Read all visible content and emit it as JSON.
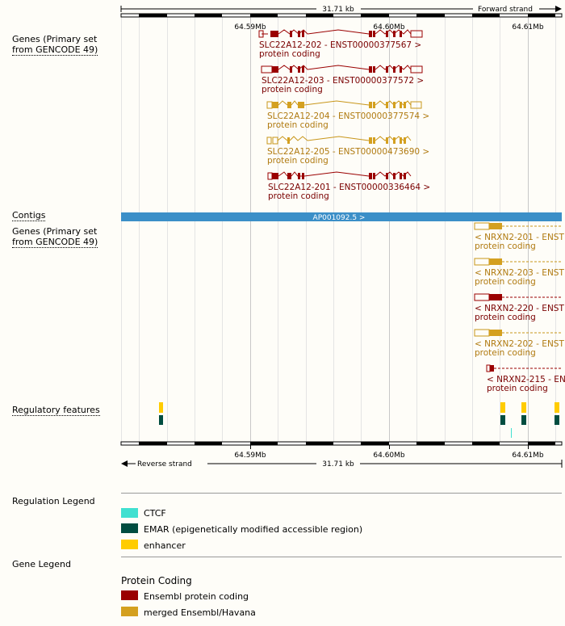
{
  "track_labels": {
    "genes_top": [
      "Genes (Primary set",
      "from GENCODE 49)"
    ],
    "contigs": "Contigs",
    "genes_bottom": [
      "Genes (Primary set",
      "from GENCODE 49)"
    ],
    "regulatory": "Regulatory features"
  },
  "ruler": {
    "top_span": "31.71 kb",
    "top_strand": "Forward strand",
    "bottom_span": "31.71 kb",
    "bottom_strand": "Reverse strand",
    "ticks": [
      "64.59Mb",
      "64.60Mb",
      "64.61Mb"
    ]
  },
  "contig": {
    "label": "AP001092.5 >"
  },
  "colors": {
    "ensembl": "#9a0000",
    "merged": "#d4a020",
    "contig": "#3b8fc8",
    "ctcf": "#40e0d0",
    "emar": "#004d40",
    "enhancer": "#ffcc00"
  },
  "transcripts_top": [
    {
      "name": "SLC22A12-202 - ENST00000377567 >",
      "biotype": "protein coding",
      "source": "ensembl"
    },
    {
      "name": "SLC22A12-203 - ENST00000377572 >",
      "biotype": "protein coding",
      "source": "ensembl"
    },
    {
      "name": "SLC22A12-204 - ENST00000377574 >",
      "biotype": "protein coding",
      "source": "merged"
    },
    {
      "name": "SLC22A12-205 - ENST00000473690 >",
      "biotype": "protein coding",
      "source": "merged"
    },
    {
      "name": "SLC22A12-201 - ENST00000336464 >",
      "biotype": "protein coding",
      "source": "ensembl"
    }
  ],
  "transcripts_bottom": [
    {
      "name": "< NRXN2-201 - ENST",
      "biotype": "protein coding",
      "source": "merged"
    },
    {
      "name": "< NRXN2-203 - ENST",
      "biotype": "protein coding",
      "source": "merged"
    },
    {
      "name": "< NRXN2-220 - ENST",
      "biotype": "protein coding",
      "source": "ensembl"
    },
    {
      "name": "< NRXN2-202 - ENST",
      "biotype": "protein coding",
      "source": "merged"
    },
    {
      "name": "< NRXN2-215 - EN",
      "biotype": "protein coding",
      "source": "ensembl"
    }
  ],
  "regulation_legend": {
    "title": "Regulation Legend",
    "items": [
      {
        "label": "CTCF",
        "color": "#40e0d0"
      },
      {
        "label": "EMAR (epigenetically modified accessible region)",
        "color": "#004d40"
      },
      {
        "label": "enhancer",
        "color": "#ffcc00"
      }
    ]
  },
  "gene_legend": {
    "title": "Gene Legend",
    "subtitle": "Protein Coding",
    "items": [
      {
        "label": "Ensembl protein coding",
        "color": "#9a0000"
      },
      {
        "label": "merged Ensembl/Havana",
        "color": "#d4a020"
      }
    ]
  }
}
